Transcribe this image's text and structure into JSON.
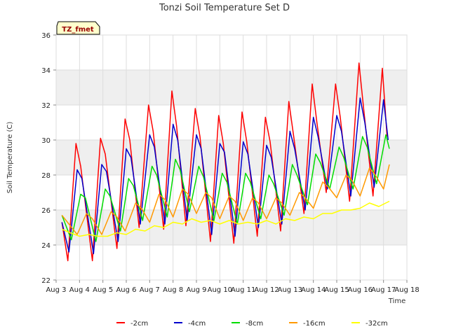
{
  "chart_data": {
    "type": "line",
    "title": "Tonzi Soil Temperature Set D",
    "xlabel": "Time",
    "ylabel": "Soil Temperature (C)",
    "tag": "TZ_fmet",
    "xlim": [
      3,
      18
    ],
    "ylim": [
      22,
      36
    ],
    "x_ticks": [
      3,
      4,
      5,
      6,
      7,
      8,
      9,
      10,
      11,
      12,
      13,
      14,
      15,
      16,
      17,
      18
    ],
    "x_tick_labels": [
      "Aug 3",
      "Aug 4",
      "Aug 5",
      "Aug 6",
      "Aug 7",
      "Aug 8",
      "Aug 9",
      "Aug 10",
      "Aug 11",
      "Aug 12",
      "Aug 13",
      "Aug 14",
      "Aug 15",
      "Aug 16",
      "Aug 17",
      "Aug 18"
    ],
    "y_ticks": [
      22,
      24,
      26,
      28,
      30,
      32,
      34,
      36
    ],
    "y_tick_labels": [
      "22",
      "24",
      "26",
      "28",
      "30",
      "32",
      "34",
      "36"
    ],
    "grid": true,
    "legend_position": "bottom",
    "series": [
      {
        "name": "-2cm",
        "color": "#ff0000",
        "x": [
          3.25,
          3.5,
          3.85,
          4.05,
          4.55,
          4.9,
          5.1,
          5.6,
          5.95,
          6.15,
          6.55,
          6.95,
          7.15,
          7.6,
          7.95,
          8.15,
          8.55,
          8.95,
          9.15,
          9.6,
          9.95,
          10.15,
          10.6,
          10.95,
          11.15,
          11.6,
          11.95,
          12.15,
          12.6,
          12.95,
          13.15,
          13.6,
          13.95,
          14.15,
          14.55,
          14.95,
          15.15,
          15.55,
          15.95,
          16.15,
          16.55,
          16.95,
          17.15
        ],
        "y": [
          25.3,
          23.1,
          29.8,
          28.5,
          23.1,
          30.1,
          29.2,
          23.8,
          31.2,
          30.0,
          25.0,
          32.0,
          30.5,
          24.9,
          32.8,
          30.8,
          25.1,
          31.8,
          30.2,
          24.2,
          31.4,
          29.8,
          24.1,
          31.6,
          29.9,
          24.5,
          31.3,
          29.9,
          24.8,
          32.2,
          30.3,
          25.8,
          33.2,
          31.0,
          27.0,
          33.2,
          31.3,
          26.5,
          34.4,
          31.8,
          26.8,
          34.1,
          30.2
        ]
      },
      {
        "name": "-4cm",
        "color": "#0000cc",
        "x": [
          3.25,
          3.55,
          3.9,
          4.1,
          4.6,
          4.95,
          5.15,
          5.65,
          6.0,
          6.2,
          6.6,
          7.0,
          7.2,
          7.65,
          8.0,
          8.2,
          8.6,
          9.0,
          9.2,
          9.65,
          10.0,
          10.2,
          10.65,
          11.0,
          11.2,
          11.65,
          12.0,
          12.2,
          12.65,
          13.0,
          13.2,
          13.65,
          14.0,
          14.2,
          14.6,
          15.0,
          15.2,
          15.6,
          16.0,
          16.2,
          16.6,
          17.0,
          17.2
        ],
        "y": [
          25.3,
          23.6,
          28.3,
          27.8,
          23.5,
          28.6,
          28.2,
          24.2,
          29.5,
          29.0,
          25.2,
          30.3,
          29.6,
          25.2,
          30.9,
          30.0,
          25.4,
          30.3,
          29.5,
          24.6,
          29.8,
          29.3,
          24.5,
          29.9,
          29.2,
          25.0,
          29.7,
          29.0,
          25.2,
          30.5,
          29.5,
          26.0,
          31.3,
          30.2,
          27.2,
          31.4,
          30.5,
          26.8,
          32.4,
          31.0,
          27.3,
          32.3,
          30.0
        ]
      },
      {
        "name": "-8cm",
        "color": "#00dd00",
        "x": [
          3.25,
          3.65,
          4.05,
          4.25,
          4.7,
          5.1,
          5.3,
          5.75,
          6.1,
          6.3,
          6.7,
          7.1,
          7.3,
          7.75,
          8.1,
          8.3,
          8.7,
          9.1,
          9.3,
          9.75,
          10.1,
          10.3,
          10.75,
          11.1,
          11.3,
          11.75,
          12.1,
          12.3,
          12.75,
          13.1,
          13.3,
          13.75,
          14.1,
          14.3,
          14.7,
          15.1,
          15.3,
          15.7,
          16.1,
          16.3,
          16.7,
          17.1,
          17.25
        ],
        "y": [
          25.7,
          24.3,
          26.9,
          26.7,
          24.2,
          27.2,
          26.8,
          24.8,
          27.8,
          27.4,
          25.4,
          28.5,
          28.0,
          25.6,
          28.9,
          28.3,
          25.9,
          28.5,
          27.9,
          25.4,
          28.1,
          27.6,
          25.2,
          28.1,
          27.6,
          25.5,
          28.0,
          27.5,
          25.7,
          28.6,
          28.0,
          26.3,
          29.2,
          28.7,
          27.2,
          29.6,
          29.0,
          27.2,
          30.2,
          29.6,
          27.5,
          30.3,
          29.5
        ]
      },
      {
        "name": "-16cm",
        "color": "#ff9900",
        "x": [
          3.25,
          3.9,
          4.3,
          4.55,
          4.95,
          5.35,
          5.6,
          5.95,
          6.4,
          6.65,
          7.0,
          7.4,
          7.65,
          8.0,
          8.4,
          8.65,
          9.0,
          9.4,
          9.65,
          10.0,
          10.4,
          10.65,
          11.0,
          11.4,
          11.65,
          12.0,
          12.4,
          12.65,
          13.0,
          13.4,
          13.65,
          14.0,
          14.4,
          14.65,
          15.0,
          15.4,
          15.65,
          16.0,
          16.4,
          16.65,
          17.0,
          17.25
        ],
        "y": [
          25.7,
          24.6,
          25.8,
          25.5,
          24.6,
          25.9,
          25.6,
          24.8,
          26.4,
          26.1,
          25.3,
          26.9,
          26.6,
          25.6,
          27.2,
          26.9,
          25.8,
          27.0,
          26.7,
          25.5,
          26.8,
          26.5,
          25.4,
          26.7,
          26.4,
          25.5,
          26.7,
          26.4,
          25.7,
          27.0,
          26.7,
          26.1,
          27.6,
          27.3,
          26.7,
          28.0,
          27.7,
          26.8,
          28.4,
          28.0,
          27.2,
          28.6
        ]
      },
      {
        "name": "-32cm",
        "color": "#ffff00",
        "x": [
          3.25,
          3.6,
          4.0,
          4.4,
          4.8,
          5.2,
          5.6,
          6.0,
          6.4,
          6.8,
          7.2,
          7.6,
          8.0,
          8.4,
          8.8,
          9.2,
          9.6,
          10.0,
          10.4,
          10.8,
          11.2,
          11.6,
          12.0,
          12.4,
          12.8,
          13.2,
          13.6,
          14.0,
          14.4,
          14.8,
          15.2,
          15.6,
          16.0,
          16.4,
          16.8,
          17.25
        ],
        "y": [
          24.9,
          24.7,
          24.5,
          24.6,
          24.5,
          24.5,
          24.7,
          24.6,
          24.9,
          24.8,
          25.1,
          25.0,
          25.3,
          25.2,
          25.5,
          25.3,
          25.4,
          25.2,
          25.4,
          25.2,
          25.3,
          25.2,
          25.4,
          25.2,
          25.5,
          25.4,
          25.6,
          25.5,
          25.8,
          25.8,
          26.0,
          26.0,
          26.1,
          26.4,
          26.2,
          26.5
        ]
      }
    ]
  }
}
